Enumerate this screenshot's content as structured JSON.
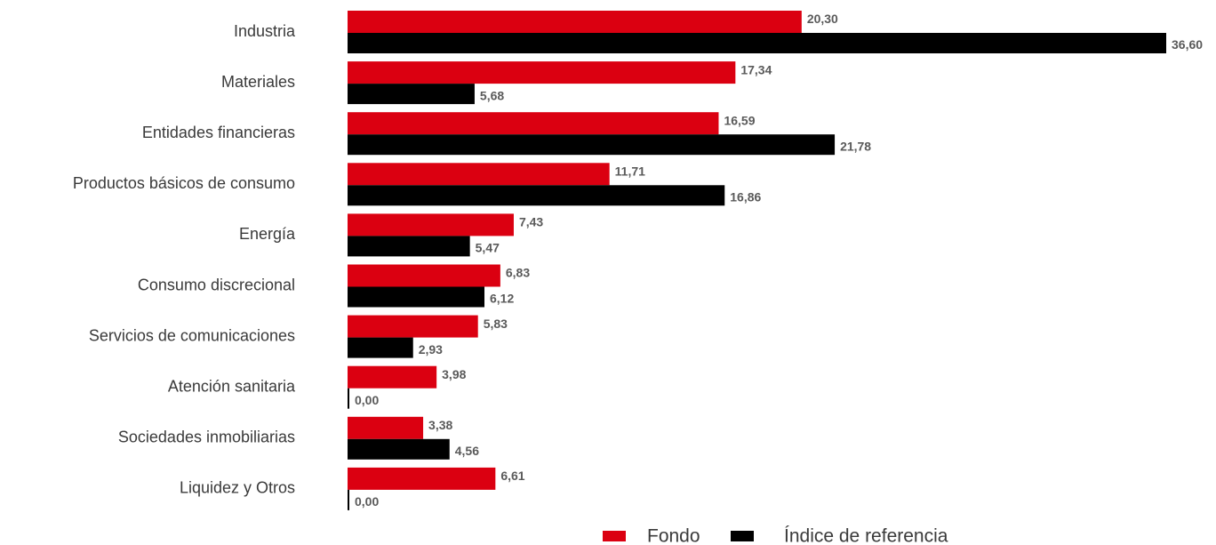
{
  "chart_data": {
    "type": "bar",
    "orientation": "horizontal",
    "categories": [
      "Industria",
      "Materiales",
      "Entidades financieras",
      "Productos básicos de consumo",
      "Energía",
      "Consumo discrecional",
      "Servicios de comunicaciones",
      "Atención sanitaria",
      "Sociedades inmobiliarias",
      "Liquidez y Otros"
    ],
    "series": [
      {
        "name": "Fondo",
        "color": "#db0011",
        "values": [
          20.3,
          17.34,
          16.59,
          11.71,
          7.43,
          6.83,
          5.83,
          3.98,
          3.38,
          6.61
        ],
        "value_labels": [
          "20,30",
          "17,34",
          "16,59",
          "11,71",
          "7,43",
          "6,83",
          "5,83",
          "3,98",
          "3,38",
          "6,61"
        ]
      },
      {
        "name": "Índice de referencia",
        "color": "#000000",
        "values": [
          36.6,
          5.68,
          21.78,
          16.86,
          5.47,
          6.12,
          2.93,
          0.0,
          4.56,
          0.0
        ],
        "value_labels": [
          "36,60",
          "5,68",
          "21,78",
          "16,86",
          "5,47",
          "6,12",
          "2,93",
          "0,00",
          "4,56",
          "0,00"
        ]
      }
    ],
    "legend": "bottom"
  }
}
